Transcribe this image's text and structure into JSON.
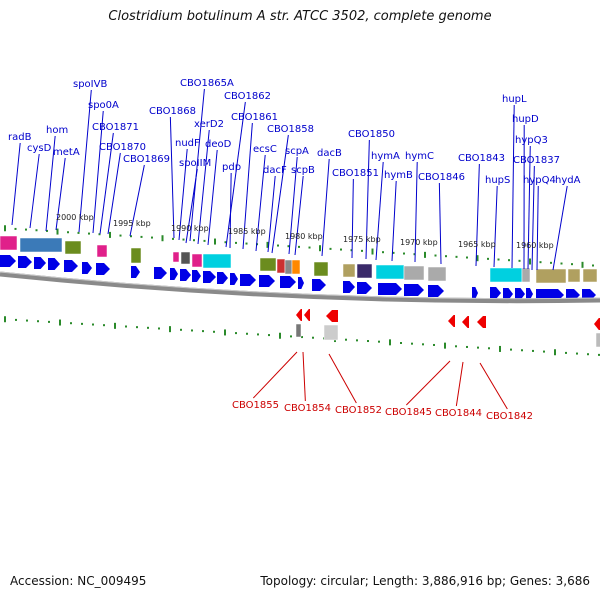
{
  "title": "Clostridium botulinum A str. ATCC 3502, complete genome",
  "accession": "Accession: NC_009495",
  "topology": "Topology: circular; Length: 3,886,916 bp; Genes: 3,686",
  "colors": {
    "forward_label": "#0000cc",
    "reverse_label": "#cc0000",
    "forward_gene": "#0000e6",
    "reverse_gene": "#ee0000",
    "tick": "#2a8a2a",
    "backbone": "#888888"
  },
  "kbp_ticks": [
    "2000 kbp",
    "1995 kbp",
    "1990 kbp",
    "1985 kbp",
    "1980 kbp",
    "1975 kbp",
    "1970 kbp",
    "1965 kbp",
    "1960 kbp"
  ],
  "forward_labels": [
    "radB",
    "cysD",
    "hom",
    "metA",
    "spoIVB",
    "spo0A",
    "CBO1871",
    "CBO1870",
    "CBO1869",
    "CBO1868",
    "nudF",
    "CBO1865A",
    "spoIIM",
    "xerD2",
    "deoD",
    "CBO1862",
    "pdp",
    "CBO1861",
    "ecsC",
    "dacF",
    "CBO1858",
    "scpA",
    "scpB",
    "dacB",
    "CBO1851",
    "CBO1850",
    "hymA",
    "hymB",
    "hymC",
    "CBO1846",
    "CBO1843",
    "hupS",
    "hupL",
    "hupD",
    "hypQ3",
    "CBO1837",
    "hypQ4",
    "hydA"
  ],
  "reverse_labels": [
    "CBO1855",
    "CBO1854",
    "CBO1852",
    "CBO1845",
    "CBO1844",
    "CBO1842"
  ]
}
